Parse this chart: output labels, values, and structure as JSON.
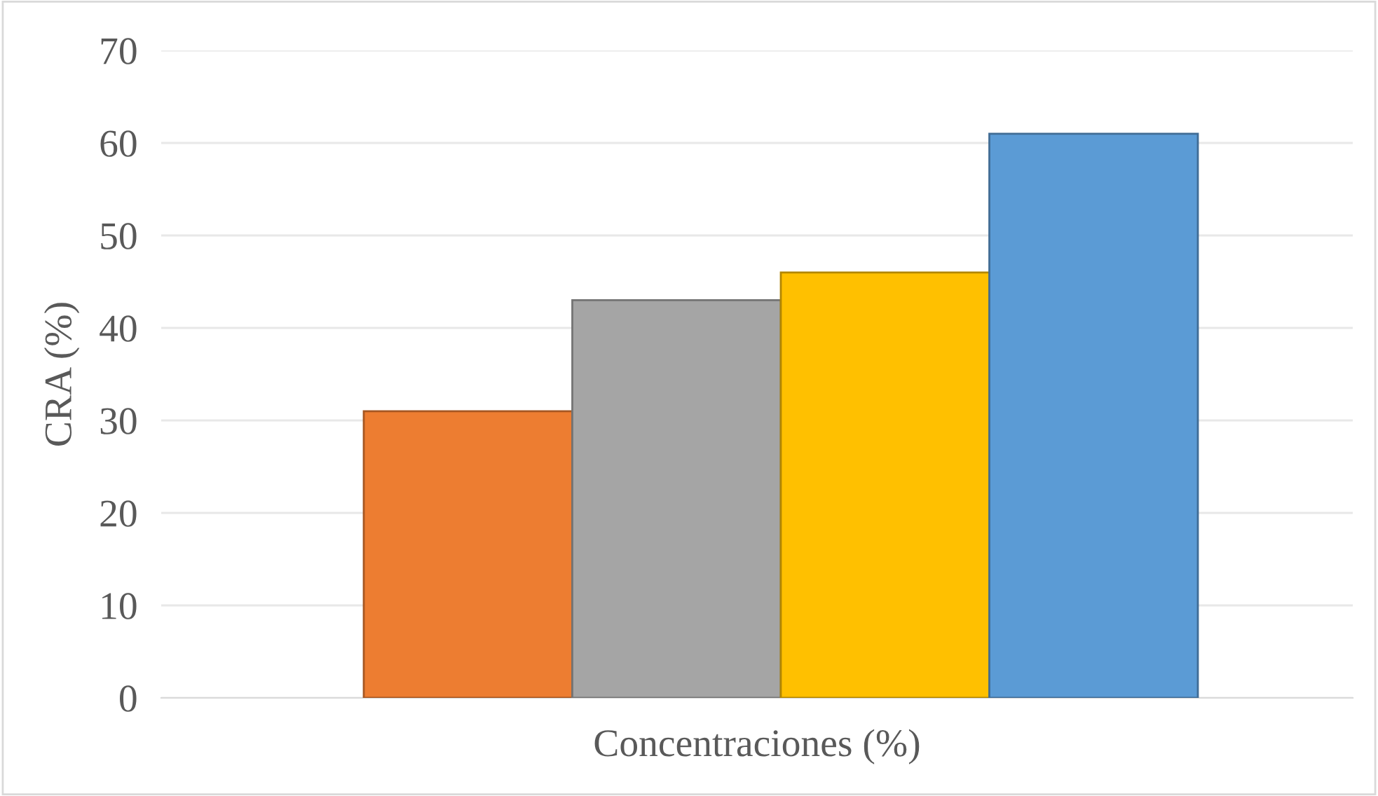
{
  "chart_data": {
    "type": "bar",
    "xlabel": "Concentraciones (%)",
    "ylabel": "CRA (%)",
    "categories": [
      null
    ],
    "series": [
      {
        "color": "#ed7d31",
        "values": [
          31
        ]
      },
      {
        "color": "#a5a5a5",
        "values": [
          43
        ]
      },
      {
        "color": "#ffc000",
        "values": [
          46
        ]
      },
      {
        "color": "#5b9bd5",
        "values": [
          61
        ]
      }
    ],
    "ylim": [
      0,
      70
    ],
    "yticks": [
      0,
      10,
      20,
      30,
      40,
      50,
      60,
      70
    ],
    "grid": "y",
    "tick_labels": "y"
  }
}
